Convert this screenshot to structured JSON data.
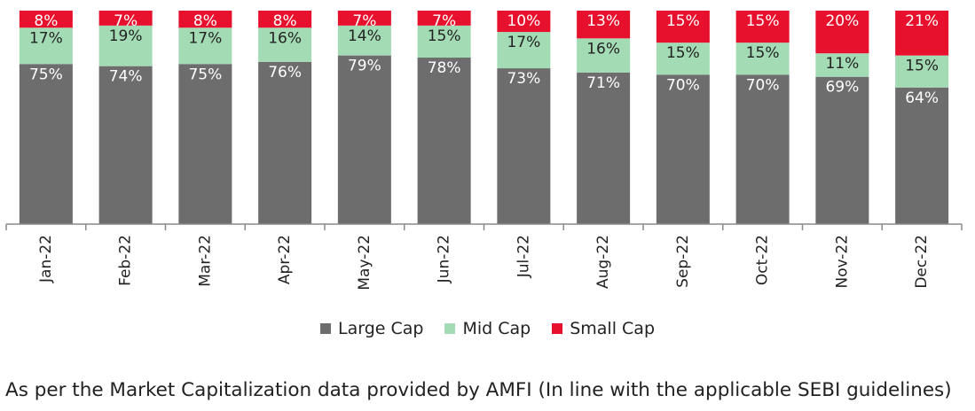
{
  "chart_data": {
    "type": "bar",
    "stacked": true,
    "categories": [
      "Jan-22",
      "Feb-22",
      "Mar-22",
      "Apr-22",
      "May-22",
      "Jun-22",
      "Jul-22",
      "Aug-22",
      "Sep-22",
      "Oct-22",
      "Nov-22",
      "Dec-22"
    ],
    "series": [
      {
        "name": "Large Cap",
        "color": "#6d6d6d",
        "values": [
          75,
          74,
          75,
          76,
          79,
          78,
          73,
          71,
          70,
          70,
          69,
          64
        ]
      },
      {
        "name": "Mid Cap",
        "color": "#a3dbb5",
        "values": [
          17,
          19,
          17,
          16,
          14,
          15,
          17,
          16,
          15,
          15,
          11,
          15
        ]
      },
      {
        "name": "Small Cap",
        "color": "#e8112d",
        "values": [
          8,
          7,
          8,
          8,
          7,
          7,
          10,
          13,
          15,
          15,
          20,
          21
        ]
      }
    ],
    "data_label_format": "{v}%",
    "ylim": [
      0,
      100
    ],
    "grid": false,
    "legend_position": "bottom"
  },
  "footnote": "As per the Market Capitalization data provided by AMFI (In line with the applicable SEBI guidelines)"
}
